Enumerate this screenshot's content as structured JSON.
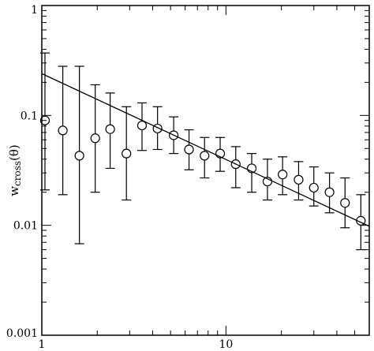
{
  "chart_data": {
    "type": "scatter",
    "title": "",
    "xlabel": "",
    "ylabel": {
      "main": "w",
      "subscript": "cross",
      "argument": "(θ)"
    },
    "x_scale": "log",
    "y_scale": "log",
    "xlim": [
      1,
      60
    ],
    "ylim": [
      0.001,
      1
    ],
    "x_tick_labels": [
      {
        "value": 1,
        "label": "1"
      },
      {
        "value": 10,
        "label": "10"
      }
    ],
    "y_tick_labels": [
      {
        "value": 1,
        "label": "1"
      },
      {
        "value": 0.1,
        "label": "0.1"
      },
      {
        "value": 0.01,
        "label": "0.01"
      },
      {
        "value": 0.001,
        "label": "0.001"
      }
    ],
    "grid": false,
    "legend": "none",
    "series": [
      {
        "type": "scatter",
        "marker": "open-circle",
        "points": [
          {
            "x": 1.04,
            "y": 0.09,
            "lo": 0.021,
            "hi": 0.37
          },
          {
            "x": 1.3,
            "y": 0.073,
            "lo": 0.019,
            "hi": 0.28
          },
          {
            "x": 1.6,
            "y": 0.043,
            "lo": 0.0068,
            "hi": 0.28
          },
          {
            "x": 1.95,
            "y": 0.062,
            "lo": 0.02,
            "hi": 0.19
          },
          {
            "x": 2.35,
            "y": 0.075,
            "lo": 0.033,
            "hi": 0.16
          },
          {
            "x": 2.88,
            "y": 0.045,
            "lo": 0.017,
            "hi": 0.12
          },
          {
            "x": 3.5,
            "y": 0.081,
            "lo": 0.048,
            "hi": 0.13
          },
          {
            "x": 4.25,
            "y": 0.076,
            "lo": 0.049,
            "hi": 0.12
          },
          {
            "x": 5.2,
            "y": 0.066,
            "lo": 0.045,
            "hi": 0.097
          },
          {
            "x": 6.3,
            "y": 0.049,
            "lo": 0.032,
            "hi": 0.074
          },
          {
            "x": 7.65,
            "y": 0.043,
            "lo": 0.027,
            "hi": 0.063
          },
          {
            "x": 9.3,
            "y": 0.045,
            "lo": 0.031,
            "hi": 0.063
          },
          {
            "x": 11.3,
            "y": 0.036,
            "lo": 0.022,
            "hi": 0.052
          },
          {
            "x": 13.8,
            "y": 0.033,
            "lo": 0.02,
            "hi": 0.045
          },
          {
            "x": 16.8,
            "y": 0.025,
            "lo": 0.017,
            "hi": 0.04
          },
          {
            "x": 20.3,
            "y": 0.029,
            "lo": 0.019,
            "hi": 0.042
          },
          {
            "x": 24.8,
            "y": 0.026,
            "lo": 0.017,
            "hi": 0.038
          },
          {
            "x": 30.0,
            "y": 0.022,
            "lo": 0.015,
            "hi": 0.034
          },
          {
            "x": 36.5,
            "y": 0.02,
            "lo": 0.013,
            "hi": 0.03
          },
          {
            "x": 44.3,
            "y": 0.016,
            "lo": 0.0095,
            "hi": 0.027
          },
          {
            "x": 54.0,
            "y": 0.011,
            "lo": 0.006,
            "hi": 0.019
          }
        ]
      },
      {
        "type": "line",
        "style": "solid",
        "points": [
          {
            "x": 1.0,
            "y": 0.24
          },
          {
            "x": 60,
            "y": 0.0098
          }
        ]
      }
    ]
  }
}
